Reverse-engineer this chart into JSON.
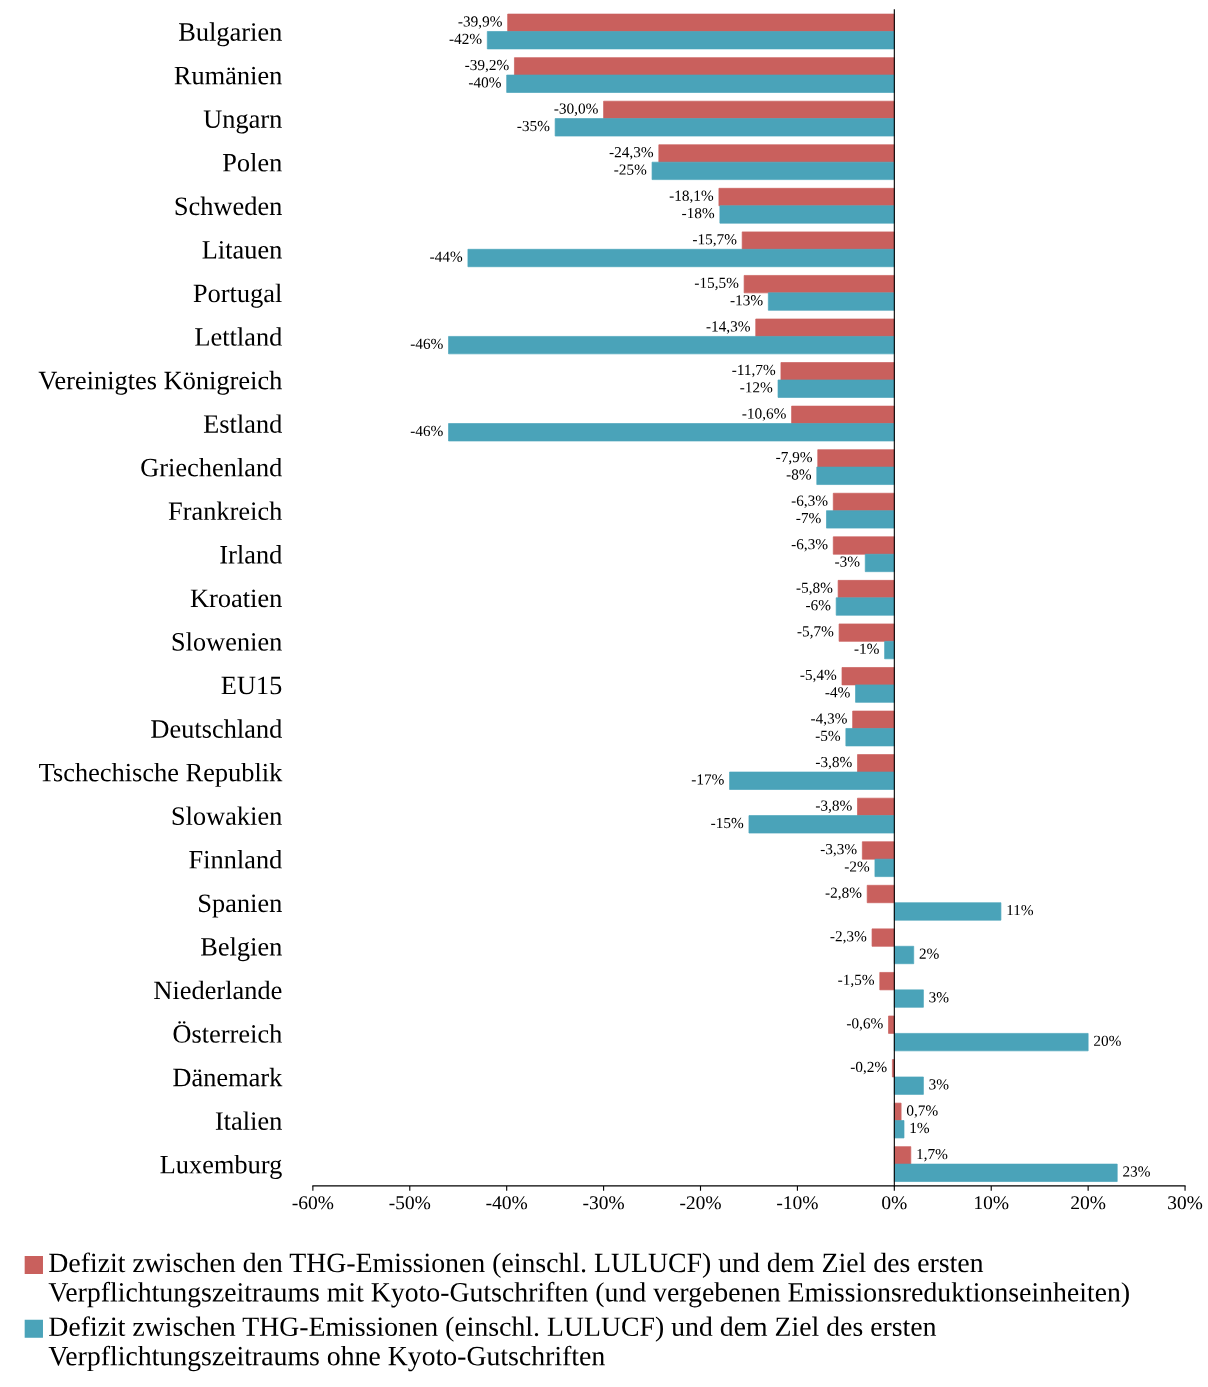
{
  "chart_data": {
    "type": "bar",
    "orientation": "horizontal",
    "categories": [
      "Bulgarien",
      "Rumänien",
      "Ungarn",
      "Polen",
      "Schweden",
      "Litauen",
      "Portugal",
      "Lettland",
      "Vereinigtes Königreich",
      "Estland",
      "Griechenland",
      "Frankreich",
      "Irland",
      "Kroatien",
      "Slowenien",
      "EU15",
      "Deutschland",
      "Tschechische Republik",
      "Slowakien",
      "Finnland",
      "Spanien",
      "Belgien",
      "Niederlande",
      "Österreich",
      "Dänemark",
      "Italien",
      "Luxemburg"
    ],
    "series": [
      {
        "name": "Defizit zwischen den THG-Emissionen (einschl. LULUCF) und dem Ziel des ersten Verpflichtungszeitraums mit Kyoto-Gutschriften (und vergebenen Emissionsreduktionseinheiten)",
        "color": "#c9605d",
        "values": [
          -39.9,
          -39.2,
          -30.0,
          -24.3,
          -18.1,
          -15.7,
          -15.5,
          -14.3,
          -11.7,
          -10.6,
          -7.9,
          -6.3,
          -6.3,
          -5.8,
          -5.7,
          -5.4,
          -4.3,
          -3.8,
          -3.8,
          -3.3,
          -2.8,
          -2.3,
          -1.5,
          -0.6,
          -0.2,
          0.7,
          1.7
        ],
        "value_labels": [
          "-39,9%",
          "-39,2%",
          "-30,0%",
          "-24,3%",
          "-18,1%",
          "-15,7%",
          "-15,5%",
          "-14,3%",
          "-11,7%",
          "-10,6%",
          "-7,9%",
          "-6,3%",
          "-6,3%",
          "-5,8%",
          "-5,7%",
          "-5,4%",
          "-4,3%",
          "-3,8%",
          "-3,8%",
          "-3,3%",
          "-2,8%",
          "-2,3%",
          "-1,5%",
          "-0,6%",
          "-0,2%",
          "0,7%",
          "1,7%"
        ]
      },
      {
        "name": "Defizit zwischen THG-Emissionen (einschl. LULUCF) und dem Ziel des ersten Verpflichtungszeitraums ohne Kyoto-Gutschriften",
        "color": "#4aa3b9",
        "values": [
          -42,
          -40,
          -35,
          -25,
          -18,
          -44,
          -13,
          -46,
          -12,
          -46,
          -8,
          -7,
          -3,
          -6,
          -1,
          -4,
          -5,
          -17,
          -15,
          -2,
          11,
          2,
          3,
          20,
          3,
          1,
          23
        ],
        "value_labels": [
          "-42%",
          "-40%",
          "-35%",
          "-25%",
          "-18%",
          "-44%",
          "-13%",
          "-46%",
          "-12%",
          "-46%",
          "-8%",
          "-7%",
          "-3%",
          "-6%",
          "-1%",
          "-4%",
          "-5%",
          "-17%",
          "-15%",
          "-2%",
          "11%",
          "2%",
          "3%",
          "20%",
          "3%",
          "1%",
          "23%"
        ]
      }
    ],
    "xlim": [
      -60,
      30
    ],
    "xticks": [
      {
        "value": -60,
        "label": "-60%"
      },
      {
        "value": -50,
        "label": "-50%"
      },
      {
        "value": -40,
        "label": "-40%"
      },
      {
        "value": -30,
        "label": "-30%"
      },
      {
        "value": -20,
        "label": "-20%"
      },
      {
        "value": -10,
        "label": "-10%"
      },
      {
        "value": 0,
        "label": "0%"
      },
      {
        "value": 10,
        "label": "10%"
      },
      {
        "value": 20,
        "label": "20%"
      },
      {
        "value": 30,
        "label": "30%"
      }
    ],
    "legend": "bottom"
  }
}
